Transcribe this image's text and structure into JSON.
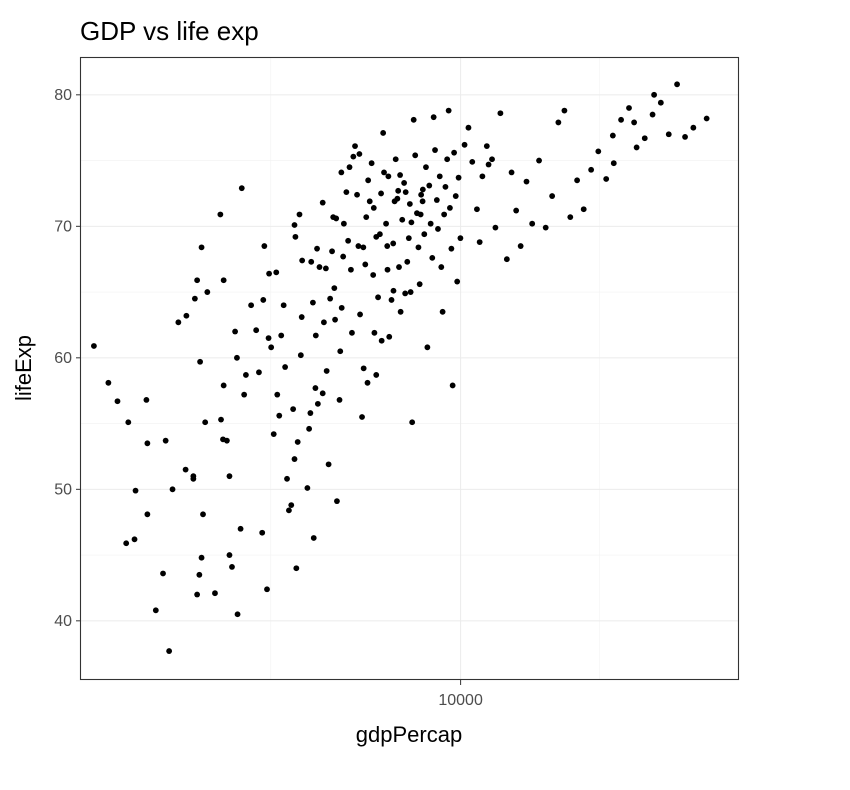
{
  "chart_data": {
    "type": "scatter",
    "title": "GDP vs life exp",
    "xlabel": "gdpPercap",
    "ylabel": "lifeExp",
    "x_scale": "log10",
    "xlim": [
      1500,
      40000
    ],
    "ylim": [
      35.5,
      82.8
    ],
    "x_ticks": [
      10000
    ],
    "x_tick_labels": [
      "10000"
    ],
    "y_ticks": [
      40,
      50,
      60,
      70,
      80
    ],
    "y_tick_labels": [
      "40",
      "50",
      "60",
      "70",
      "80"
    ],
    "grid": true,
    "point_color": "#000000",
    "points": [
      [
        1600,
        60.9
      ],
      [
        1720,
        58.1
      ],
      [
        1800,
        56.7
      ],
      [
        1900,
        55.1
      ],
      [
        1970,
        49.9
      ],
      [
        2090,
        48.1
      ],
      [
        2090,
        53.5
      ],
      [
        2080,
        56.8
      ],
      [
        1960,
        46.2
      ],
      [
        1880,
        45.9
      ],
      [
        2180,
        40.8
      ],
      [
        2260,
        43.6
      ],
      [
        2290,
        53.7
      ],
      [
        2330,
        37.7
      ],
      [
        2370,
        50.0
      ],
      [
        2530,
        51.5
      ],
      [
        2630,
        50.8
      ],
      [
        2680,
        42.0
      ],
      [
        2710,
        43.5
      ],
      [
        2740,
        44.8
      ],
      [
        2760,
        48.1
      ],
      [
        2790,
        55.1
      ],
      [
        2440,
        62.7
      ],
      [
        2650,
        64.5
      ],
      [
        2680,
        65.9
      ],
      [
        2820,
        65.0
      ],
      [
        2740,
        68.4
      ],
      [
        2540,
        63.2
      ],
      [
        2720,
        59.7
      ],
      [
        2630,
        51.0
      ],
      [
        2930,
        42.1
      ],
      [
        3020,
        55.3
      ],
      [
        3050,
        53.8
      ],
      [
        3060,
        57.9
      ],
      [
        3010,
        70.9
      ],
      [
        3060,
        65.9
      ],
      [
        3110,
        53.7
      ],
      [
        3150,
        51.0
      ],
      [
        3150,
        45.0
      ],
      [
        3190,
        44.1
      ],
      [
        3280,
        40.5
      ],
      [
        3270,
        60.0
      ],
      [
        3240,
        62.0
      ],
      [
        3330,
        47.0
      ],
      [
        3390,
        57.2
      ],
      [
        3350,
        72.9
      ],
      [
        3510,
        64.0
      ],
      [
        3600,
        62.1
      ],
      [
        3650,
        58.9
      ],
      [
        3710,
        46.7
      ],
      [
        3730,
        64.4
      ],
      [
        3750,
        68.5
      ],
      [
        3800,
        42.4
      ],
      [
        3840,
        66.4
      ],
      [
        3880,
        60.8
      ],
      [
        3930,
        54.2
      ],
      [
        4000,
        57.2
      ],
      [
        4040,
        55.6
      ],
      [
        4080,
        61.7
      ],
      [
        4130,
        64.0
      ],
      [
        4160,
        59.3
      ],
      [
        4200,
        50.8
      ],
      [
        4240,
        48.4
      ],
      [
        4290,
        48.8
      ],
      [
        4360,
        52.3
      ],
      [
        4400,
        44.0
      ],
      [
        4430,
        53.6
      ],
      [
        4500,
        60.2
      ],
      [
        4520,
        63.1
      ],
      [
        4380,
        69.2
      ],
      [
        4470,
        70.9
      ],
      [
        4650,
        50.1
      ],
      [
        4690,
        54.6
      ],
      [
        4720,
        55.8
      ],
      [
        4740,
        67.3
      ],
      [
        4780,
        64.2
      ],
      [
        4800,
        46.3
      ],
      [
        4850,
        61.7
      ],
      [
        4900,
        56.5
      ],
      [
        4940,
        66.9
      ],
      [
        5020,
        57.3
      ],
      [
        5050,
        62.7
      ],
      [
        5100,
        66.8
      ],
      [
        5120,
        59.0
      ],
      [
        5170,
        51.9
      ],
      [
        5210,
        64.5
      ],
      [
        5260,
        68.1
      ],
      [
        5290,
        70.7
      ],
      [
        5320,
        65.3
      ],
      [
        5390,
        49.1
      ],
      [
        5460,
        56.8
      ],
      [
        5480,
        60.5
      ],
      [
        5520,
        63.8
      ],
      [
        5560,
        67.7
      ],
      [
        5580,
        70.2
      ],
      [
        5650,
        72.6
      ],
      [
        5700,
        68.9
      ],
      [
        5780,
        66.7
      ],
      [
        5850,
        75.3
      ],
      [
        5900,
        76.1
      ],
      [
        5960,
        72.4
      ],
      [
        6000,
        68.5
      ],
      [
        6050,
        63.3
      ],
      [
        6110,
        55.5
      ],
      [
        6160,
        59.2
      ],
      [
        6210,
        67.1
      ],
      [
        6240,
        70.7
      ],
      [
        6300,
        73.5
      ],
      [
        6350,
        71.9
      ],
      [
        6410,
        74.8
      ],
      [
        6460,
        66.3
      ],
      [
        6500,
        61.9
      ],
      [
        6560,
        58.7
      ],
      [
        6620,
        64.6
      ],
      [
        6680,
        69.4
      ],
      [
        6720,
        72.5
      ],
      [
        6790,
        77.1
      ],
      [
        6820,
        74.1
      ],
      [
        6890,
        70.2
      ],
      [
        6940,
        66.7
      ],
      [
        7000,
        61.6
      ],
      [
        7080,
        64.4
      ],
      [
        7140,
        68.7
      ],
      [
        7190,
        71.9
      ],
      [
        7230,
        75.1
      ],
      [
        7290,
        72.1
      ],
      [
        7350,
        66.9
      ],
      [
        7410,
        63.5
      ],
      [
        7470,
        70.5
      ],
      [
        7540,
        73.3
      ],
      [
        7600,
        72.6
      ],
      [
        7660,
        67.3
      ],
      [
        7720,
        69.1
      ],
      [
        7790,
        65.0
      ],
      [
        7850,
        55.1
      ],
      [
        7910,
        78.1
      ],
      [
        7970,
        75.4
      ],
      [
        8040,
        71.0
      ],
      [
        8100,
        68.4
      ],
      [
        8150,
        65.6
      ],
      [
        8210,
        72.4
      ],
      [
        8280,
        72.8
      ],
      [
        8340,
        69.4
      ],
      [
        8410,
        74.5
      ],
      [
        8470,
        60.8
      ],
      [
        8550,
        73.1
      ],
      [
        8610,
        70.2
      ],
      [
        8680,
        67.6
      ],
      [
        8740,
        78.3
      ],
      [
        8800,
        75.8
      ],
      [
        8880,
        72.0
      ],
      [
        8930,
        69.8
      ],
      [
        9010,
        73.8
      ],
      [
        9080,
        66.9
      ],
      [
        9140,
        63.5
      ],
      [
        9210,
        70.9
      ],
      [
        9270,
        73.0
      ],
      [
        9350,
        75.1
      ],
      [
        9420,
        78.8
      ],
      [
        9480,
        71.4
      ],
      [
        9550,
        68.3
      ],
      [
        9610,
        57.9
      ],
      [
        9680,
        75.6
      ],
      [
        9760,
        72.3
      ],
      [
        9830,
        65.8
      ],
      [
        9900,
        73.7
      ],
      [
        9990,
        69.1
      ],
      [
        10200,
        76.2
      ],
      [
        10400,
        77.5
      ],
      [
        10600,
        74.9
      ],
      [
        10850,
        71.3
      ],
      [
        11000,
        68.8
      ],
      [
        11150,
        73.8
      ],
      [
        11400,
        76.1
      ],
      [
        11700,
        75.1
      ],
      [
        11900,
        69.9
      ],
      [
        12200,
        78.6
      ],
      [
        12600,
        67.5
      ],
      [
        12900,
        74.1
      ],
      [
        13200,
        71.2
      ],
      [
        13500,
        68.5
      ],
      [
        13900,
        73.4
      ],
      [
        14300,
        70.2
      ],
      [
        14800,
        75.0
      ],
      [
        15300,
        69.9
      ],
      [
        15800,
        72.3
      ],
      [
        16300,
        77.9
      ],
      [
        16800,
        78.8
      ],
      [
        17300,
        70.7
      ],
      [
        17900,
        73.5
      ],
      [
        18500,
        71.3
      ],
      [
        19200,
        74.3
      ],
      [
        19900,
        75.7
      ],
      [
        20700,
        73.6
      ],
      [
        21500,
        74.8
      ],
      [
        22300,
        78.1
      ],
      [
        23200,
        79.0
      ],
      [
        24100,
        76.0
      ],
      [
        25100,
        76.7
      ],
      [
        26100,
        78.5
      ],
      [
        27200,
        79.4
      ],
      [
        28300,
        77.0
      ],
      [
        29500,
        80.8
      ],
      [
        30700,
        76.8
      ],
      [
        32000,
        77.5
      ],
      [
        34200,
        78.2
      ],
      [
        26300,
        80.0
      ],
      [
        23800,
        77.9
      ],
      [
        21400,
        76.9
      ],
      [
        11500,
        74.7
      ],
      [
        4360,
        70.1
      ],
      [
        4880,
        68.3
      ],
      [
        5370,
        70.6
      ],
      [
        5740,
        74.5
      ],
      [
        6150,
        68.4
      ],
      [
        6560,
        69.2
      ],
      [
        6970,
        73.8
      ],
      [
        7320,
        72.7
      ],
      [
        7760,
        71.7
      ],
      [
        8190,
        70.9
      ],
      [
        3980,
        66.5
      ],
      [
        4530,
        67.4
      ],
      [
        5020,
        71.8
      ],
      [
        5510,
        74.1
      ],
      [
        6030,
        75.5
      ],
      [
        6480,
        71.4
      ],
      [
        6930,
        68.5
      ],
      [
        7390,
        73.9
      ],
      [
        7820,
        70.3
      ],
      [
        8270,
        71.9
      ],
      [
        3420,
        58.7
      ],
      [
        3830,
        61.5
      ],
      [
        4330,
        56.1
      ],
      [
        4840,
        57.7
      ],
      [
        5340,
        62.9
      ],
      [
        5810,
        61.9
      ],
      [
        6280,
        58.1
      ],
      [
        6740,
        61.3
      ],
      [
        7150,
        65.1
      ],
      [
        7580,
        64.9
      ]
    ]
  }
}
